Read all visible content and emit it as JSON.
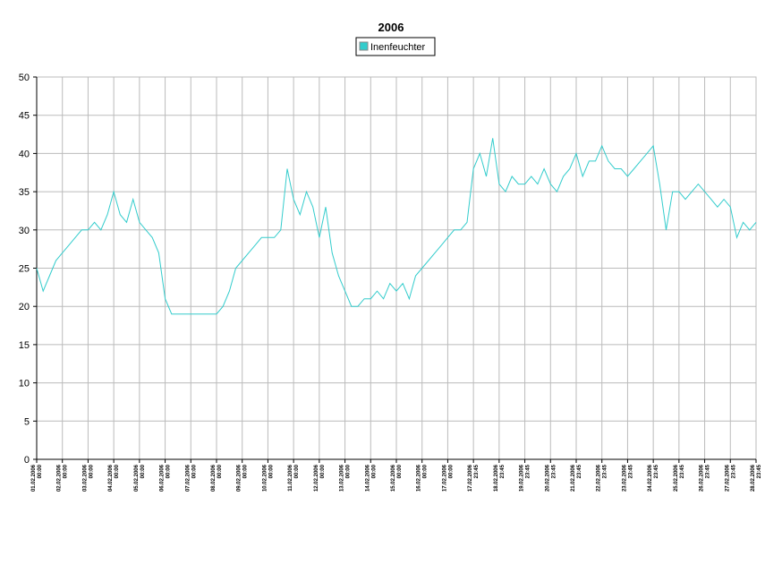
{
  "chart_data": {
    "type": "line",
    "title": "2006",
    "categories": [
      [
        "01.02.2006",
        "00:00"
      ],
      null,
      null,
      null,
      [
        "02.02.2006",
        "00:00"
      ],
      null,
      null,
      null,
      [
        "03.02.2006",
        "00:00"
      ],
      null,
      null,
      null,
      [
        "04.02.2006",
        "00:00"
      ],
      null,
      null,
      null,
      [
        "05.02.2006",
        "00:00"
      ],
      null,
      null,
      null,
      [
        "06.02.2006",
        "00:00"
      ],
      null,
      null,
      null,
      [
        "07.02.2006",
        "00:00"
      ],
      null,
      null,
      null,
      [
        "08.02.2006",
        "00:00"
      ],
      null,
      null,
      null,
      [
        "09.02.2006",
        "00:00"
      ],
      null,
      null,
      null,
      [
        "10.02.2006",
        "00:00"
      ],
      null,
      null,
      null,
      [
        "11.02.2006",
        "00:00"
      ],
      null,
      null,
      null,
      [
        "12.02.2006",
        "00:00"
      ],
      null,
      null,
      null,
      [
        "13.02.2006",
        "00:00"
      ],
      null,
      null,
      null,
      [
        "14.02.2006",
        "00:00"
      ],
      null,
      null,
      null,
      [
        "15.02.2006",
        "00:00"
      ],
      null,
      null,
      null,
      [
        "16.02.2006",
        "00:00"
      ],
      null,
      null,
      null,
      [
        "17.02.2006",
        "00:00"
      ],
      null,
      null,
      null,
      [
        "17.02.2006",
        "23:45"
      ],
      null,
      null,
      null,
      [
        "18.02.2006",
        "23:45"
      ],
      null,
      null,
      null,
      [
        "19.02.2006",
        "23:45"
      ],
      null,
      null,
      null,
      [
        "20.02.2006",
        "23:45"
      ],
      null,
      null,
      null,
      [
        "21.02.2006",
        "23:45"
      ],
      null,
      null,
      null,
      [
        "22.02.2006",
        "23:45"
      ],
      null,
      null,
      null,
      [
        "23.02.2006",
        "23:45"
      ],
      null,
      null,
      null,
      [
        "24.02.2006",
        "23:45"
      ],
      null,
      null,
      null,
      [
        "25.02.2006",
        "23:45"
      ],
      null,
      null,
      null,
      [
        "26.02.2006",
        "23:45"
      ],
      null,
      null,
      null,
      [
        "27.02.2006",
        "23:45"
      ],
      null,
      null,
      null,
      [
        "28.02.2006",
        "23:45"
      ]
    ],
    "series": [
      {
        "name": "Inenfeuchter",
        "color": "#33cccc",
        "values": [
          25,
          22,
          24,
          26,
          27,
          28,
          29,
          30,
          30,
          31,
          30,
          32,
          35,
          32,
          31,
          34,
          31,
          30,
          29,
          27,
          21,
          19,
          19,
          19,
          19,
          19,
          19,
          19,
          19,
          20,
          22,
          25,
          26,
          27,
          28,
          29,
          29,
          29,
          30,
          38,
          34,
          32,
          35,
          33,
          29,
          33,
          27,
          24,
          22,
          20,
          20,
          21,
          21,
          22,
          21,
          23,
          22,
          23,
          21,
          24,
          25,
          26,
          27,
          28,
          29,
          30,
          30,
          31,
          38,
          40,
          37,
          42,
          36,
          35,
          37,
          36,
          36,
          37,
          36,
          38,
          36,
          35,
          37,
          38,
          40,
          37,
          39,
          39,
          41,
          39,
          38,
          38,
          37,
          38,
          39,
          40,
          41,
          36,
          30,
          35,
          35,
          34,
          35,
          36,
          35,
          34,
          33,
          34,
          33,
          29,
          31,
          30,
          31
        ]
      }
    ],
    "ylim": [
      0,
      50
    ],
    "yticks": [
      0,
      5,
      10,
      15,
      20,
      25,
      30,
      35,
      40,
      45,
      50
    ],
    "grid": true,
    "legend": "top"
  }
}
